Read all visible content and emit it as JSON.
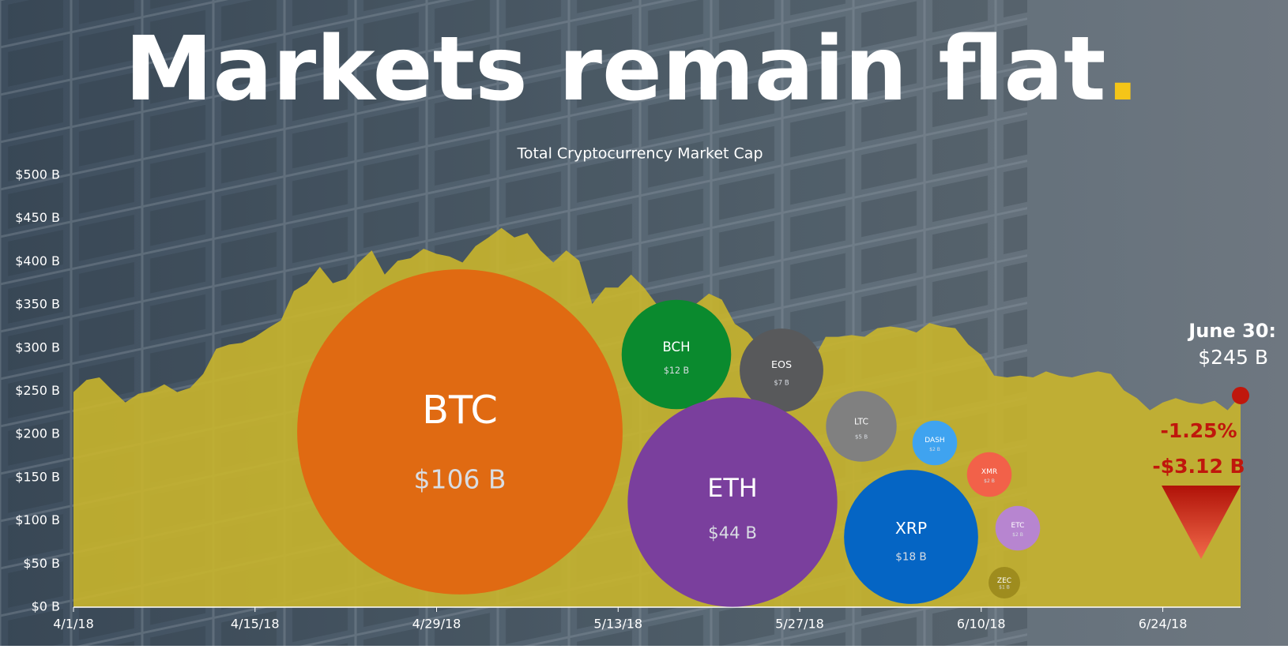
{
  "header": {
    "title": "Markets remain flat",
    "title_dot": "."
  },
  "chart_data": [
    {
      "type": "area",
      "subtitle": "Total Cryptocurrency Market Cap",
      "color": "#c9b52c",
      "x": [
        "2018-04-01",
        "2018-04-02",
        "2018-04-03",
        "2018-04-04",
        "2018-04-05",
        "2018-04-06",
        "2018-04-07",
        "2018-04-08",
        "2018-04-09",
        "2018-04-10",
        "2018-04-11",
        "2018-04-12",
        "2018-04-13",
        "2018-04-14",
        "2018-04-15",
        "2018-04-16",
        "2018-04-17",
        "2018-04-18",
        "2018-04-19",
        "2018-04-20",
        "2018-04-21",
        "2018-04-22",
        "2018-04-23",
        "2018-04-24",
        "2018-04-25",
        "2018-04-26",
        "2018-04-27",
        "2018-04-28",
        "2018-04-29",
        "2018-04-30",
        "2018-05-01",
        "2018-05-02",
        "2018-05-03",
        "2018-05-04",
        "2018-05-05",
        "2018-05-06",
        "2018-05-07",
        "2018-05-08",
        "2018-05-09",
        "2018-05-10",
        "2018-05-11",
        "2018-05-12",
        "2018-05-13",
        "2018-05-14",
        "2018-05-15",
        "2018-05-16",
        "2018-05-17",
        "2018-05-18",
        "2018-05-19",
        "2018-05-20",
        "2018-05-21",
        "2018-05-22",
        "2018-05-23",
        "2018-05-24",
        "2018-05-25",
        "2018-05-26",
        "2018-05-27",
        "2018-05-28",
        "2018-05-29",
        "2018-05-30",
        "2018-05-31",
        "2018-06-01",
        "2018-06-02",
        "2018-06-03",
        "2018-06-04",
        "2018-06-05",
        "2018-06-06",
        "2018-06-07",
        "2018-06-08",
        "2018-06-09",
        "2018-06-10",
        "2018-06-11",
        "2018-06-12",
        "2018-06-13",
        "2018-06-14",
        "2018-06-15",
        "2018-06-16",
        "2018-06-17",
        "2018-06-18",
        "2018-06-19",
        "2018-06-20",
        "2018-06-21",
        "2018-06-22",
        "2018-06-23",
        "2018-06-24",
        "2018-06-25",
        "2018-06-26",
        "2018-06-27",
        "2018-06-28",
        "2018-06-29",
        "2018-06-30"
      ],
      "values": [
        249,
        263,
        266,
        251,
        237,
        247,
        250,
        258,
        249,
        254,
        270,
        299,
        304,
        306,
        313,
        323,
        332,
        366,
        375,
        394,
        375,
        380,
        399,
        413,
        385,
        401,
        404,
        415,
        409,
        406,
        399,
        418,
        428,
        439,
        428,
        433,
        413,
        399,
        413,
        401,
        351,
        370,
        370,
        385,
        370,
        350,
        342,
        347,
        351,
        363,
        356,
        328,
        318,
        299,
        294,
        299,
        292,
        285,
        313,
        313,
        315,
        313,
        323,
        325,
        323,
        318,
        329,
        325,
        323,
        304,
        292,
        268,
        266,
        268,
        266,
        273,
        268,
        266,
        270,
        273,
        270,
        251,
        242,
        228,
        237,
        242,
        237,
        235,
        239,
        228,
        245
      ],
      "xlim": [
        "2018-04-01",
        "2018-06-30"
      ],
      "xticks": [
        {
          "value": "2018-04-01",
          "label": "4/1/18"
        },
        {
          "value": "2018-04-15",
          "label": "4/15/18"
        },
        {
          "value": "2018-04-29",
          "label": "4/29/18"
        },
        {
          "value": "2018-05-13",
          "label": "5/13/18"
        },
        {
          "value": "2018-05-27",
          "label": "5/27/18"
        },
        {
          "value": "2018-06-10",
          "label": "6/10/18"
        },
        {
          "value": "2018-06-24",
          "label": "6/24/18"
        }
      ],
      "ylim": [
        0,
        500
      ],
      "yticks": [
        {
          "value": 0,
          "label": "$0 B"
        },
        {
          "value": 50,
          "label": "$50 B"
        },
        {
          "value": 100,
          "label": "$100 B"
        },
        {
          "value": 150,
          "label": "$150 B"
        },
        {
          "value": 200,
          "label": "$200 B"
        },
        {
          "value": 250,
          "label": "$250 B"
        },
        {
          "value": 300,
          "label": "$300 B"
        },
        {
          "value": 350,
          "label": "$350 B"
        },
        {
          "value": 400,
          "label": "$400 B"
        },
        {
          "value": 450,
          "label": "$450 B"
        },
        {
          "value": 500,
          "label": "$500 B"
        }
      ],
      "annotation": {
        "date_label": "June 30:",
        "value_label": "$245 B",
        "change_pct": "-1.25%",
        "change_abs": "-$3.12 B"
      }
    },
    {
      "type": "bubble",
      "categories": [
        "BTC",
        "BCH",
        "EOS",
        "ETH",
        "LTC",
        "DASH",
        "XMR",
        "ETC",
        "XRP",
        "ZEC"
      ],
      "values": [
        106,
        12,
        7,
        44,
        5,
        2,
        2,
        2,
        18,
        1
      ],
      "value_labels": [
        "$106 B",
        "$12 B",
        "$7 B",
        "$44 B",
        "$5 B",
        "$2 B",
        "$2 B",
        "$2 B",
        "$18 B",
        "$1 B"
      ],
      "colors": [
        "#e06a12",
        "#0a8a2e",
        "#58595b",
        "#7a3f9d",
        "#808080",
        "#3fa3f0",
        "#f26149",
        "#b785d0",
        "#0565c4",
        "#9e8c1e"
      ]
    }
  ]
}
